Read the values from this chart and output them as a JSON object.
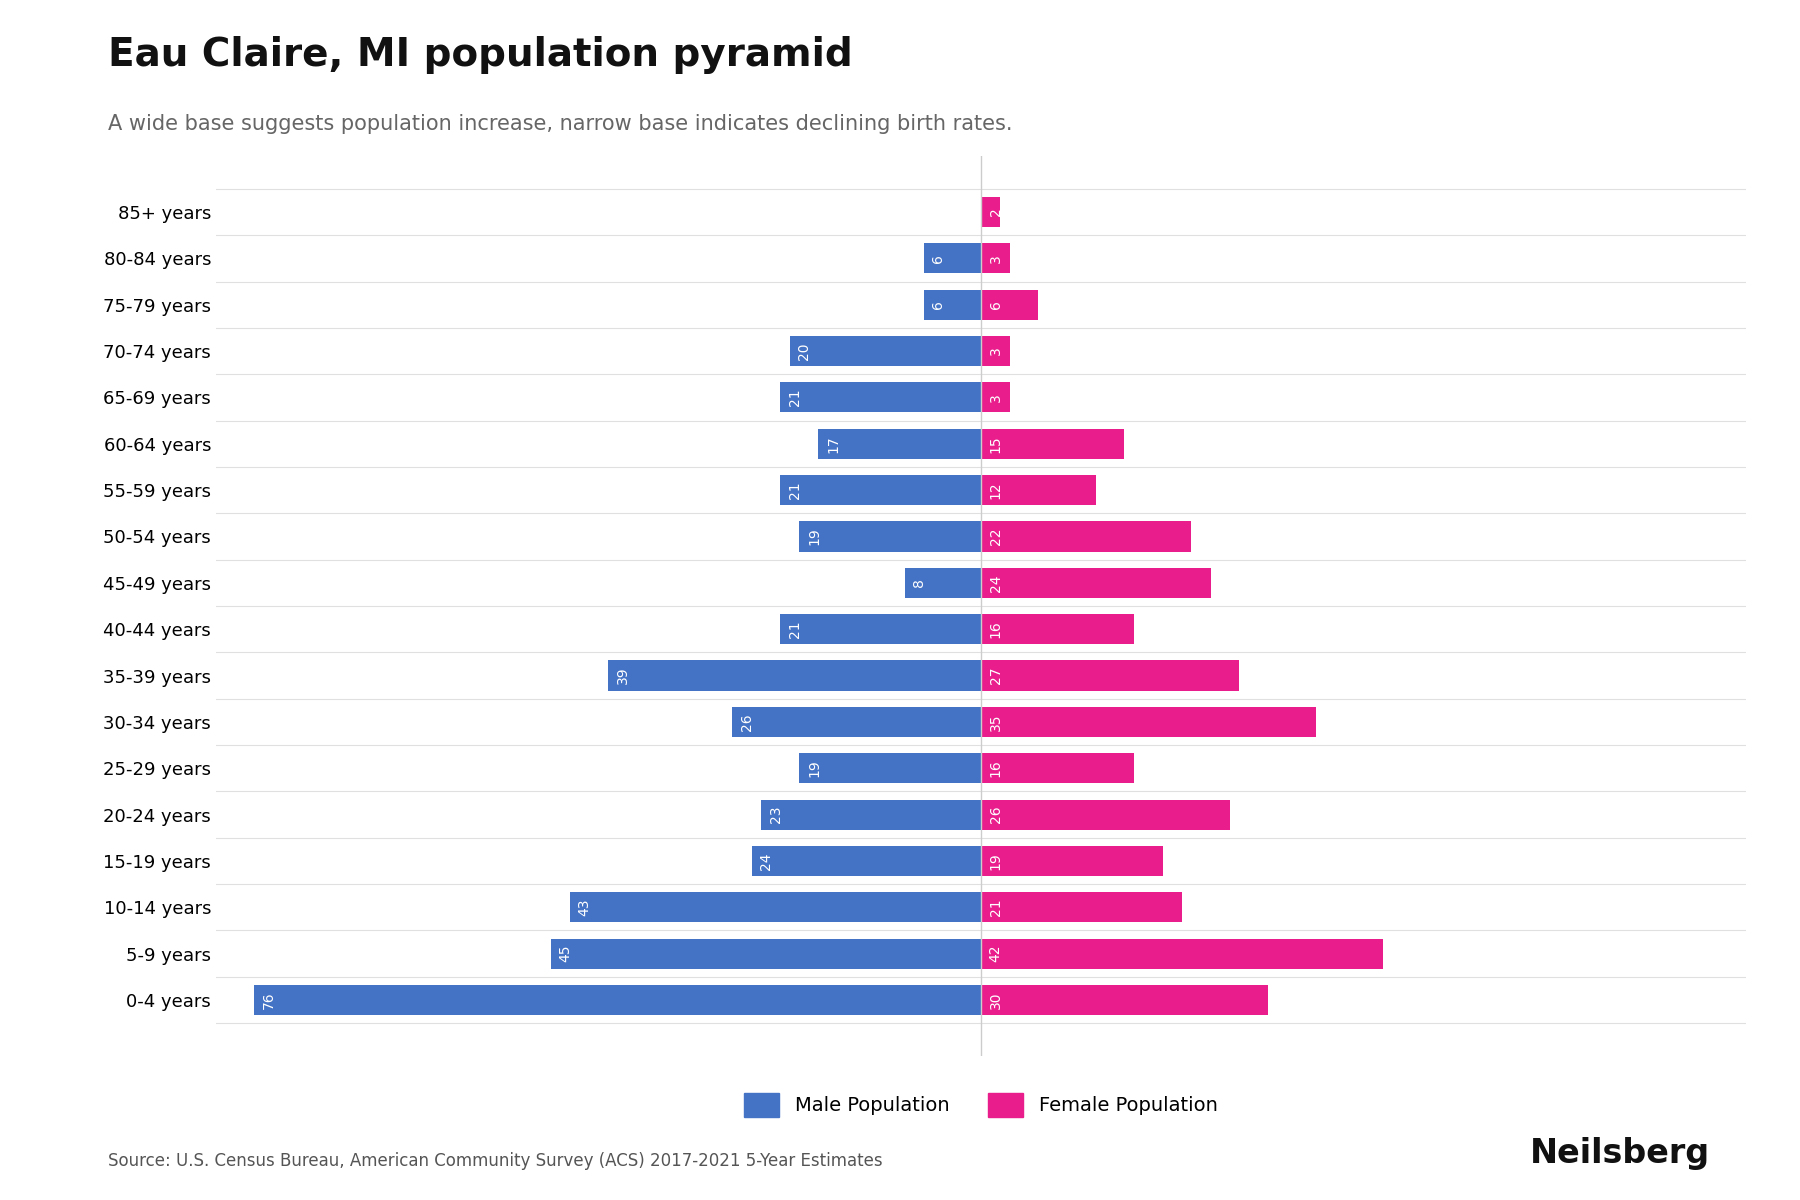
{
  "title": "Eau Claire, MI population pyramid",
  "subtitle": "A wide base suggests population increase, narrow base indicates declining birth rates.",
  "source": "Source: U.S. Census Bureau, American Community Survey (ACS) 2017-2021 5-Year Estimates",
  "branding": "Neilsberg",
  "age_groups": [
    "0-4 years",
    "5-9 years",
    "10-14 years",
    "15-19 years",
    "20-24 years",
    "25-29 years",
    "30-34 years",
    "35-39 years",
    "40-44 years",
    "45-49 years",
    "50-54 years",
    "55-59 years",
    "60-64 years",
    "65-69 years",
    "70-74 years",
    "75-79 years",
    "80-84 years",
    "85+ years"
  ],
  "male": [
    76,
    45,
    43,
    24,
    23,
    19,
    26,
    39,
    21,
    8,
    19,
    21,
    17,
    21,
    20,
    6,
    6,
    0
  ],
  "female": [
    30,
    42,
    21,
    19,
    26,
    16,
    35,
    27,
    16,
    24,
    22,
    12,
    15,
    3,
    3,
    6,
    3,
    2
  ],
  "male_color": "#4472C4",
  "female_color": "#E91E8C",
  "bar_label_color": "white",
  "background_color": "#ffffff",
  "title_fontsize": 28,
  "subtitle_fontsize": 15,
  "label_fontsize": 14,
  "bar_label_fontsize": 10,
  "tick_fontsize": 13,
  "source_fontsize": 12,
  "branding_fontsize": 24,
  "xlim": 80,
  "male_legend": "Male Population",
  "female_legend": "Female Population"
}
